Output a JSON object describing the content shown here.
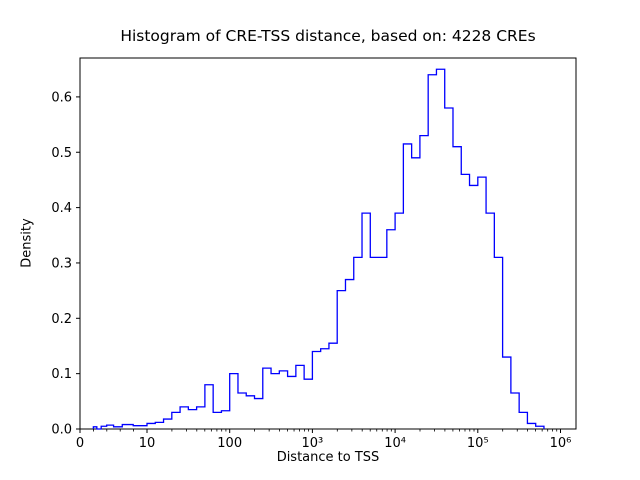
{
  "chart_data": {
    "type": "bar",
    "subtype": "step-histogram",
    "title": "Histogram of CRE-TSS distance, based on: 4228 CREs",
    "sample_count": 4228,
    "line_color": "#0000FF",
    "frame_color": "#000000",
    "background_color": "#FFFFFF",
    "legend": "none",
    "grid": false,
    "x_axis": {
      "label": "Distance to TSS",
      "scale": "symlog",
      "ticks": [
        {
          "value": 0,
          "label": "0"
        },
        {
          "value": 10,
          "label": "10"
        },
        {
          "value": 100,
          "label": "100"
        },
        {
          "value": 1000,
          "label": "10³"
        },
        {
          "value": 10000,
          "label": "10⁴"
        },
        {
          "value": 100000,
          "label": "10⁵"
        },
        {
          "value": 1000000,
          "label": "10⁶"
        }
      ]
    },
    "y_axis": {
      "label": "Density",
      "range": [
        0.0,
        0.67
      ],
      "ticks": [
        {
          "value": 0.0,
          "label": "0.0"
        },
        {
          "value": 0.1,
          "label": "0.1"
        },
        {
          "value": 0.2,
          "label": "0.2"
        },
        {
          "value": 0.3,
          "label": "0.3"
        },
        {
          "value": 0.4,
          "label": "0.4"
        },
        {
          "value": 0.5,
          "label": "0.5"
        },
        {
          "value": 0.6,
          "label": "0.6"
        }
      ]
    },
    "bin_edges_log10": [
      0.3,
      0.4,
      0.5,
      0.6,
      0.7,
      0.8,
      0.9,
      1.0,
      1.1,
      1.2,
      1.3,
      1.4,
      1.5,
      1.6,
      1.7,
      1.8,
      1.9,
      2.0,
      2.1,
      2.2,
      2.3,
      2.4,
      2.5,
      2.6,
      2.7,
      2.8,
      2.9,
      3.0,
      3.1,
      3.2,
      3.3,
      3.4,
      3.5,
      3.6,
      3.7,
      3.8,
      3.9,
      4.0,
      4.1,
      4.2,
      4.3,
      4.4,
      4.5,
      4.6,
      4.7,
      4.8,
      4.9,
      5.0,
      5.1,
      5.2,
      5.3,
      5.4,
      5.5,
      5.6,
      5.7,
      5.8
    ],
    "densities": [
      0.004,
      0.0,
      0.005,
      0.007,
      0.004,
      0.008,
      0.006,
      0.01,
      0.012,
      0.018,
      0.03,
      0.04,
      0.035,
      0.04,
      0.08,
      0.03,
      0.033,
      0.1,
      0.065,
      0.06,
      0.055,
      0.11,
      0.1,
      0.105,
      0.095,
      0.115,
      0.09,
      0.14,
      0.145,
      0.155,
      0.25,
      0.27,
      0.31,
      0.39,
      0.31,
      0.31,
      0.36,
      0.39,
      0.515,
      0.49,
      0.53,
      0.64,
      0.65,
      0.58,
      0.51,
      0.46,
      0.44,
      0.455,
      0.39,
      0.31,
      0.13,
      0.065,
      0.03,
      0.01,
      0.005
    ]
  }
}
